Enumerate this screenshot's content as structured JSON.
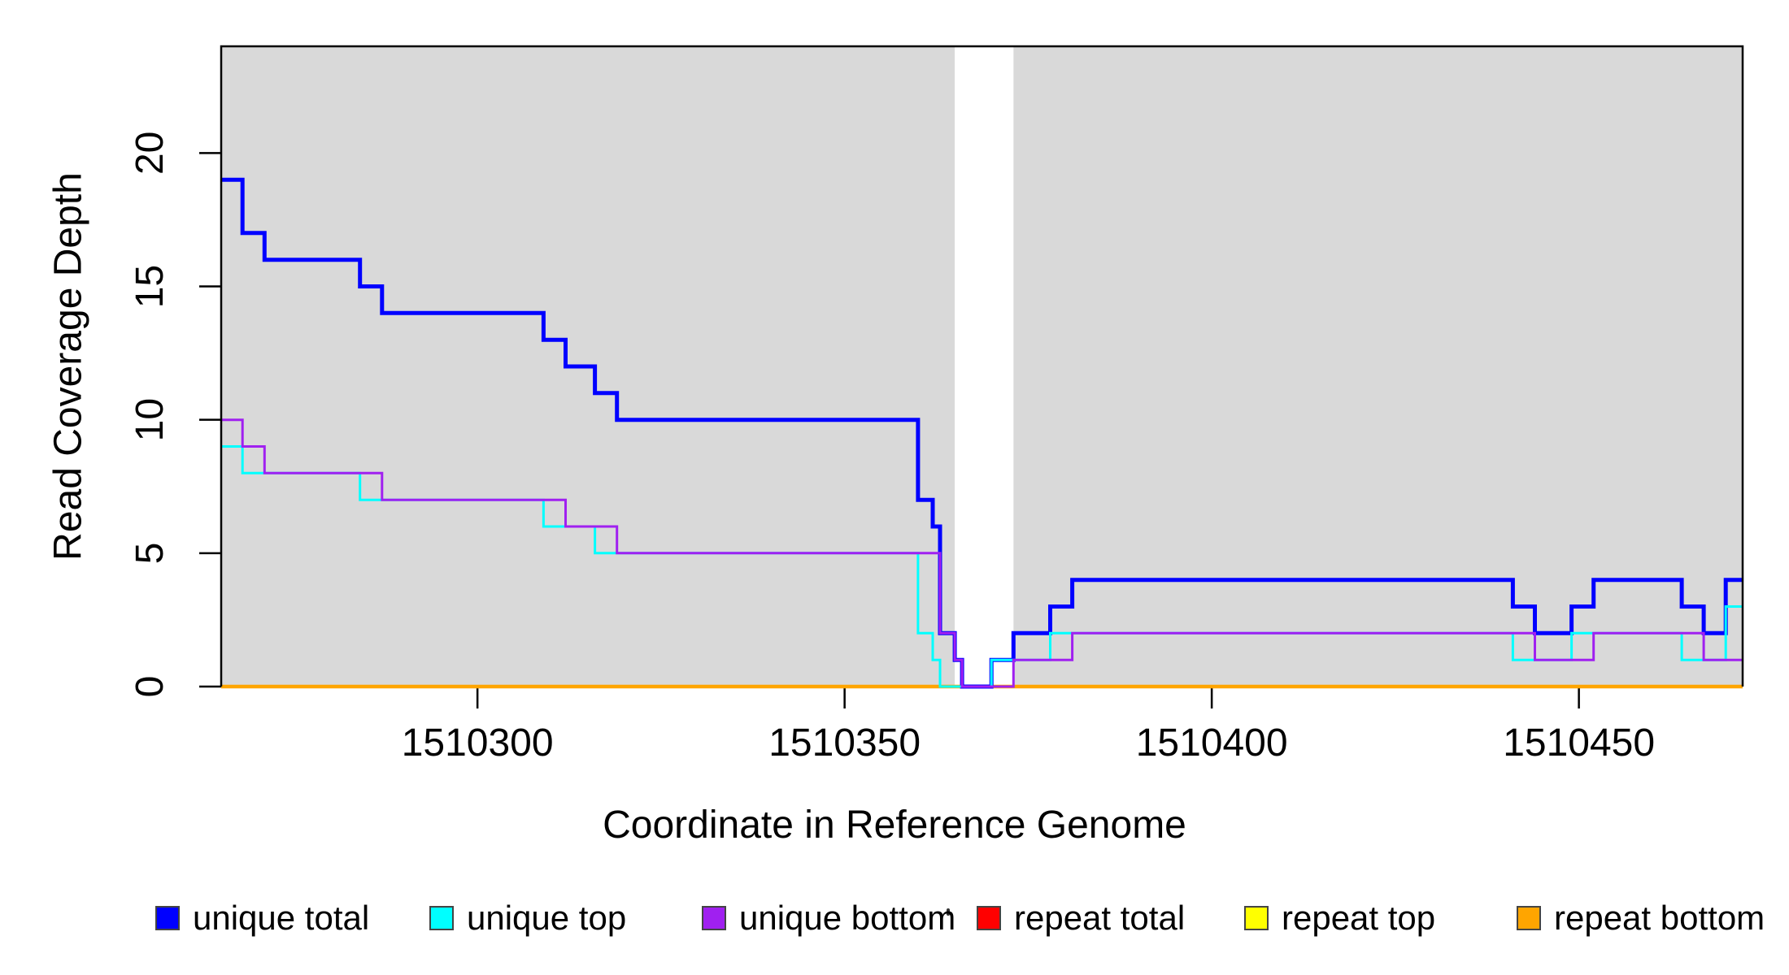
{
  "chart_data": {
    "type": "line",
    "subtype": "step-after-coverage",
    "title": "",
    "xlabel": "Coordinate in Reference Genome",
    "ylabel": "Read Coverage Depth",
    "x_range": [
      1510265.1,
      1510472.3
    ],
    "y_range": [
      0,
      24
    ],
    "x_ticks": [
      1510300,
      1510350,
      1510400,
      1510450
    ],
    "y_ticks": [
      0,
      5,
      10,
      15,
      20
    ],
    "grid": false,
    "legend_position": "bottom",
    "plot_bg_color": "#D9D9D9",
    "gap_band": {
      "x0": 1510365,
      "x1": 1510373,
      "color": "#FFFFFF"
    },
    "axis_color": "#000000",
    "series": [
      {
        "name": "repeat total",
        "color": "#FF0000",
        "width": 3.5,
        "points": [
          [
            1510265.1,
            0
          ]
        ]
      },
      {
        "name": "repeat top",
        "color": "#FFFF00",
        "width": 3.5,
        "points": [
          [
            1510265.1,
            0
          ]
        ]
      },
      {
        "name": "repeat bottom",
        "color": "#FFA500",
        "width": 4.5,
        "points": [
          [
            1510265.1,
            0
          ]
        ]
      },
      {
        "name": "unique total",
        "color": "#0000FF",
        "width": 5,
        "points": [
          [
            1510265.1,
            19
          ],
          [
            1510268,
            17
          ],
          [
            1510271,
            16
          ],
          [
            1510284,
            15
          ],
          [
            1510287,
            14
          ],
          [
            1510309,
            13
          ],
          [
            1510312,
            12
          ],
          [
            1510316,
            11
          ],
          [
            1510319,
            10
          ],
          [
            1510360,
            7
          ],
          [
            1510362,
            6
          ],
          [
            1510363,
            2
          ],
          [
            1510365,
            1
          ],
          [
            1510366,
            0
          ],
          [
            1510370,
            1
          ],
          [
            1510373,
            2
          ],
          [
            1510378,
            3
          ],
          [
            1510381,
            4
          ],
          [
            1510441,
            3
          ],
          [
            1510444,
            2
          ],
          [
            1510449,
            3
          ],
          [
            1510452,
            4
          ],
          [
            1510464,
            3
          ],
          [
            1510467,
            2
          ],
          [
            1510470,
            4
          ]
        ]
      },
      {
        "name": "unique top",
        "color": "#00FFFF",
        "width": 3,
        "points": [
          [
            1510265.1,
            9
          ],
          [
            1510268,
            8
          ],
          [
            1510284,
            7
          ],
          [
            1510309,
            6
          ],
          [
            1510316,
            5
          ],
          [
            1510360,
            2
          ],
          [
            1510362,
            1
          ],
          [
            1510363,
            0
          ],
          [
            1510370,
            1
          ],
          [
            1510378,
            2
          ],
          [
            1510441,
            1
          ],
          [
            1510449,
            2
          ],
          [
            1510464,
            1
          ],
          [
            1510470,
            3
          ]
        ]
      },
      {
        "name": "unique bottom",
        "color": "#A020F0",
        "width": 3,
        "points": [
          [
            1510265.1,
            10
          ],
          [
            1510268,
            9
          ],
          [
            1510271,
            8
          ],
          [
            1510287,
            7
          ],
          [
            1510312,
            6
          ],
          [
            1510319,
            5
          ],
          [
            1510363,
            2
          ],
          [
            1510365,
            1
          ],
          [
            1510366,
            0
          ],
          [
            1510373,
            1
          ],
          [
            1510381,
            2
          ],
          [
            1510444,
            1
          ],
          [
            1510452,
            2
          ],
          [
            1510467,
            1
          ]
        ]
      }
    ],
    "legend": [
      {
        "label": "unique total",
        "color": "#0000FF"
      },
      {
        "label": "unique top",
        "color": "#00FFFF"
      },
      {
        "label": "unique bottom",
        "color": "#A020F0"
      },
      {
        "label": "repeat total",
        "color": "#FF0000"
      },
      {
        "label": "repeat top",
        "color": "#FFFF00"
      },
      {
        "label": "repeat bottom",
        "color": "#FFA500"
      }
    ]
  }
}
